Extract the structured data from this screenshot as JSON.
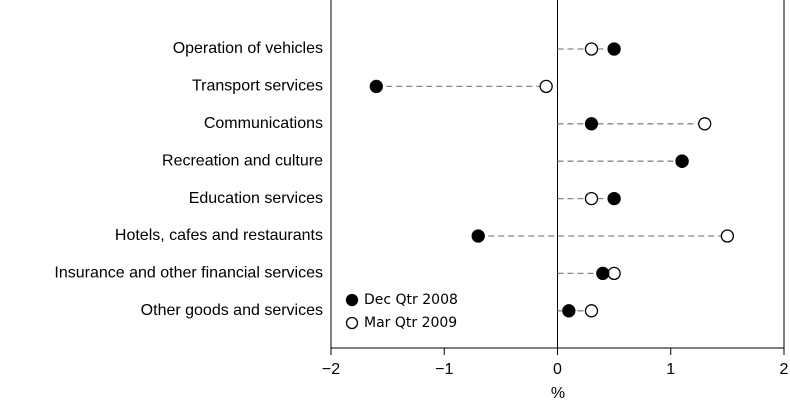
{
  "chart_data": {
    "type": "dot",
    "categories": [
      "Operation of vehicles",
      "Transport services",
      "Communications",
      "Recreation and culture",
      "Education services",
      "Hotels, cafes and restaurants",
      "Insurance and other financial services",
      "Other goods and services"
    ],
    "series": [
      {
        "name": "Dec Qtr 2008",
        "color": "#000000",
        "values": [
          0.5,
          -1.6,
          0.3,
          1.1,
          0.5,
          -0.7,
          0.4,
          0.1
        ]
      },
      {
        "name": "Mar Qtr 2009",
        "color": "#ffffff",
        "values": [
          0.3,
          -0.1,
          1.3,
          1.1,
          0.3,
          1.5,
          0.5,
          0.3
        ]
      }
    ],
    "x_label": "%",
    "xlim": [
      -2,
      2
    ],
    "xticks": [
      {
        "value": -2,
        "label": "−2"
      },
      {
        "value": -1,
        "label": "−1"
      },
      0,
      1,
      2
    ],
    "legend": "lower left"
  }
}
